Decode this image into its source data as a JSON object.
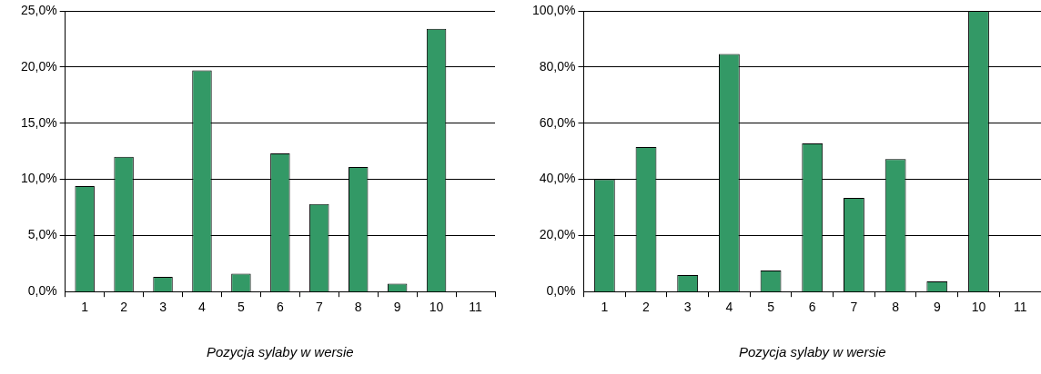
{
  "chart_data": [
    {
      "type": "bar",
      "xlabel": "Pozycja sylaby w wersie",
      "categories": [
        "1",
        "2",
        "3",
        "4",
        "5",
        "6",
        "7",
        "8",
        "9",
        "10",
        "11"
      ],
      "values": [
        9.4,
        12.0,
        1.3,
        19.7,
        1.6,
        12.3,
        7.8,
        11.1,
        0.7,
        23.4,
        0
      ],
      "color": "#339966",
      "ylim": [
        0,
        25
      ],
      "yticks": [
        {
          "value": 0,
          "label": "0,0%"
        },
        {
          "value": 5,
          "label": "5,0%"
        },
        {
          "value": 10,
          "label": "10,0%"
        },
        {
          "value": 15,
          "label": "15,0%"
        },
        {
          "value": 20,
          "label": "20,0%"
        },
        {
          "value": 25,
          "label": "25,0%"
        }
      ],
      "grid": "y",
      "legend": false
    },
    {
      "type": "bar",
      "xlabel": "Pozycja sylaby w wersie",
      "categories": [
        "1",
        "2",
        "3",
        "4",
        "5",
        "6",
        "7",
        "8",
        "9",
        "10",
        "11"
      ],
      "values": [
        40.0,
        51.5,
        5.9,
        84.6,
        7.5,
        52.8,
        33.4,
        47.2,
        3.6,
        100.0,
        0
      ],
      "color": "#339966",
      "ylim": [
        0,
        100
      ],
      "yticks": [
        {
          "value": 0,
          "label": "0,0%"
        },
        {
          "value": 20,
          "label": "20,0%"
        },
        {
          "value": 40,
          "label": "40,0%"
        },
        {
          "value": 60,
          "label": "60,0%"
        },
        {
          "value": 80,
          "label": "80,0%"
        },
        {
          "value": 100,
          "label": "100,0%"
        }
      ],
      "grid": "y",
      "legend": false
    }
  ]
}
